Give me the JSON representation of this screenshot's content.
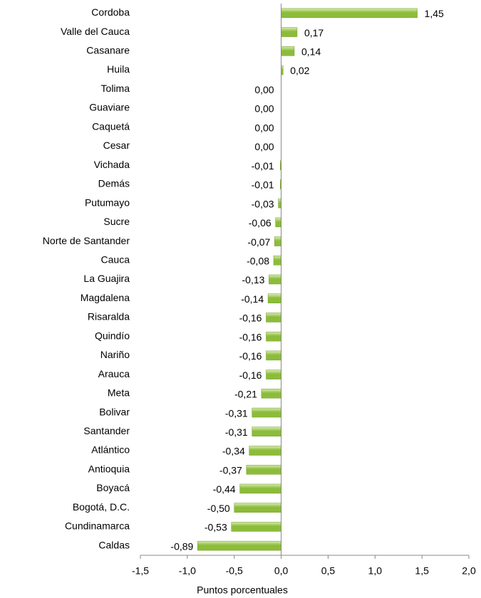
{
  "chart_data": {
    "type": "bar",
    "orientation": "horizontal",
    "x_label": "Puntos porcentuales",
    "color": "#8cbc3a",
    "categories": [
      "Cordoba",
      "Valle del Cauca",
      "Casanare",
      "Huila",
      "Tolima",
      "Guaviare",
      "Caquetá",
      "Cesar",
      "Vichada",
      "Demás",
      "Putumayo",
      "Sucre",
      "Norte de Santander",
      "Cauca",
      "La Guajira",
      "Magdalena",
      "Risaralda",
      "Quindío",
      "Nariño",
      "Arauca",
      "Meta",
      "Bolivar",
      "Santander",
      "Atlántico",
      "Antioquia",
      "Boyacá",
      "Bogotá, D.C.",
      "Cundinamarca",
      "Caldas"
    ],
    "values": [
      1.45,
      0.17,
      0.14,
      0.02,
      0,
      0,
      0,
      0,
      -0.01,
      -0.01,
      -0.03,
      -0.06,
      -0.07,
      -0.08,
      -0.13,
      -0.14,
      -0.16,
      -0.16,
      -0.16,
      -0.16,
      -0.21,
      -0.31,
      -0.31,
      -0.34,
      -0.37,
      -0.44,
      -0.5,
      -0.53,
      -0.89
    ],
    "value_labels": [
      "1,45",
      "0,17",
      "0,14",
      "0,02",
      "0,00",
      "0,00",
      "0,00",
      "0,00",
      "-0,01",
      "-0,01",
      "-0,03",
      "-0,06",
      "-0,07",
      "-0,08",
      "-0,13",
      "-0,14",
      "-0,16",
      "-0,16",
      "-0,16",
      "-0,16",
      "-0,21",
      "-0,31",
      "-0,31",
      "-0,34",
      "-0,37",
      "-0,44",
      "-0,50",
      "-0,53",
      "-0,89"
    ],
    "xlim": [
      -1.5,
      2.0
    ],
    "xticks": [
      {
        "value": -1.5,
        "label": "-1,5"
      },
      {
        "value": -1.0,
        "label": "-1,0"
      },
      {
        "value": -0.5,
        "label": "-0,5"
      },
      {
        "value": 0.0,
        "label": "0,0"
      },
      {
        "value": 0.5,
        "label": "0,5"
      },
      {
        "value": 1.0,
        "label": "1,0"
      },
      {
        "value": 1.5,
        "label": "1,5"
      },
      {
        "value": 2.0,
        "label": "2,0"
      }
    ]
  }
}
